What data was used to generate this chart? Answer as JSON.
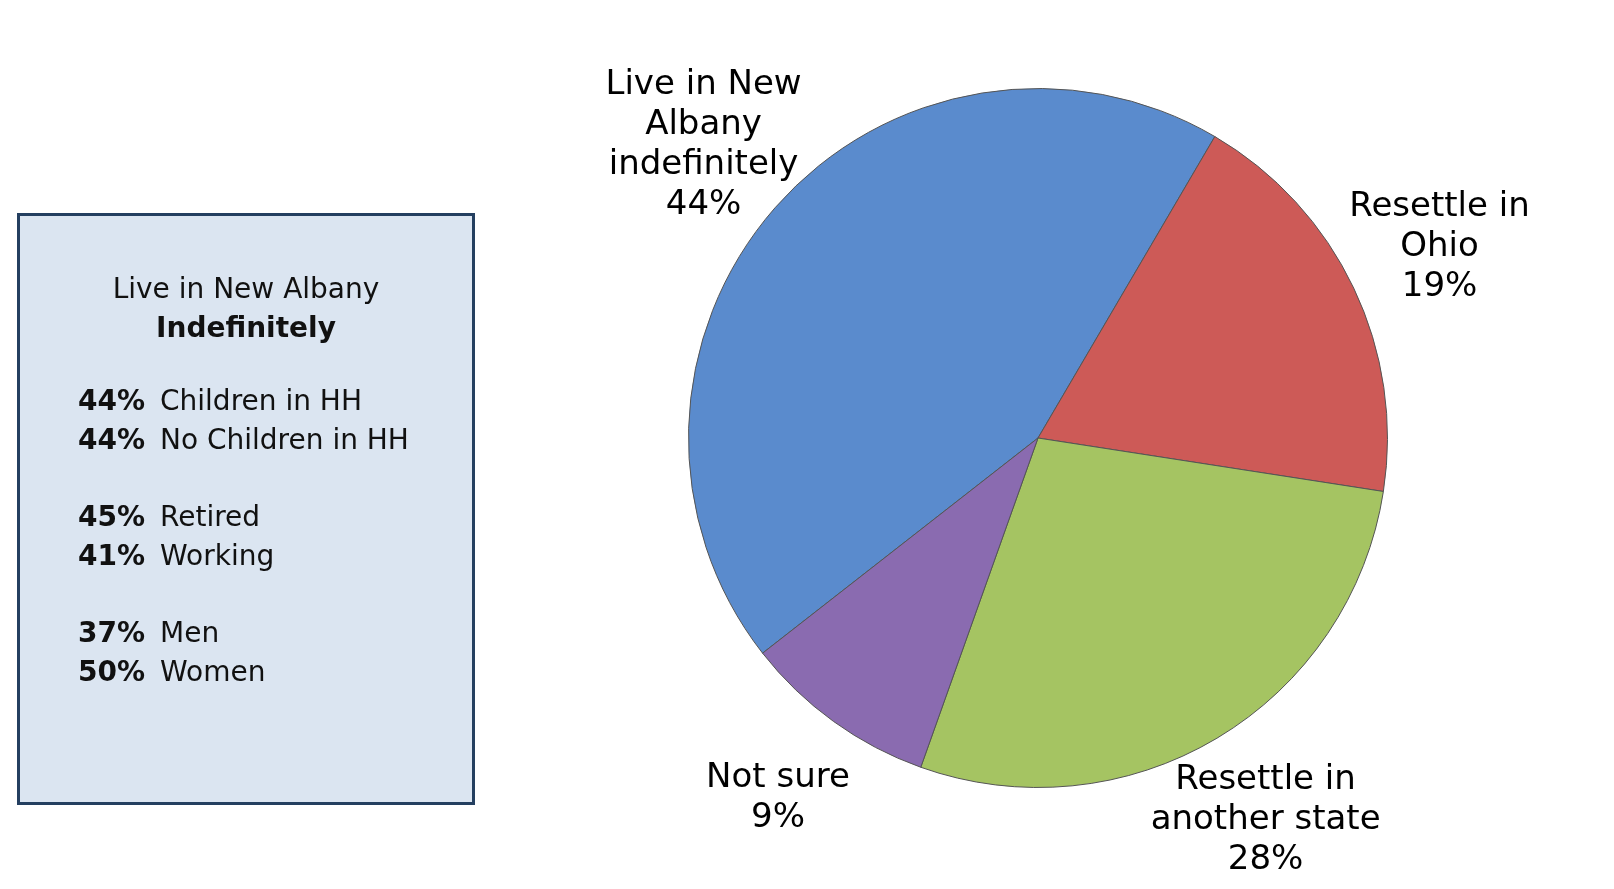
{
  "chart_data": [
    {
      "type": "other",
      "title": "Live in New Albany",
      "subtitle": "Indefinitely",
      "annotations": [
        "44% Children in HH",
        "44% No Children in HH",
        "45% Retired",
        "41% Working",
        "37% Men",
        "50% Women"
      ]
    },
    {
      "type": "pie",
      "categories": [
        "Live in New Albany indefinitely",
        "Resettle in Ohio",
        "Resettle in another state",
        "Not sure"
      ],
      "values": [
        44,
        19,
        28,
        9
      ],
      "colors": [
        "#5a8bcd",
        "#cd5a57",
        "#a5c462",
        "#8a6bb0"
      ],
      "value_labels": [
        "44%",
        "19%",
        "28%",
        "9%"
      ],
      "legend": false
    }
  ]
}
